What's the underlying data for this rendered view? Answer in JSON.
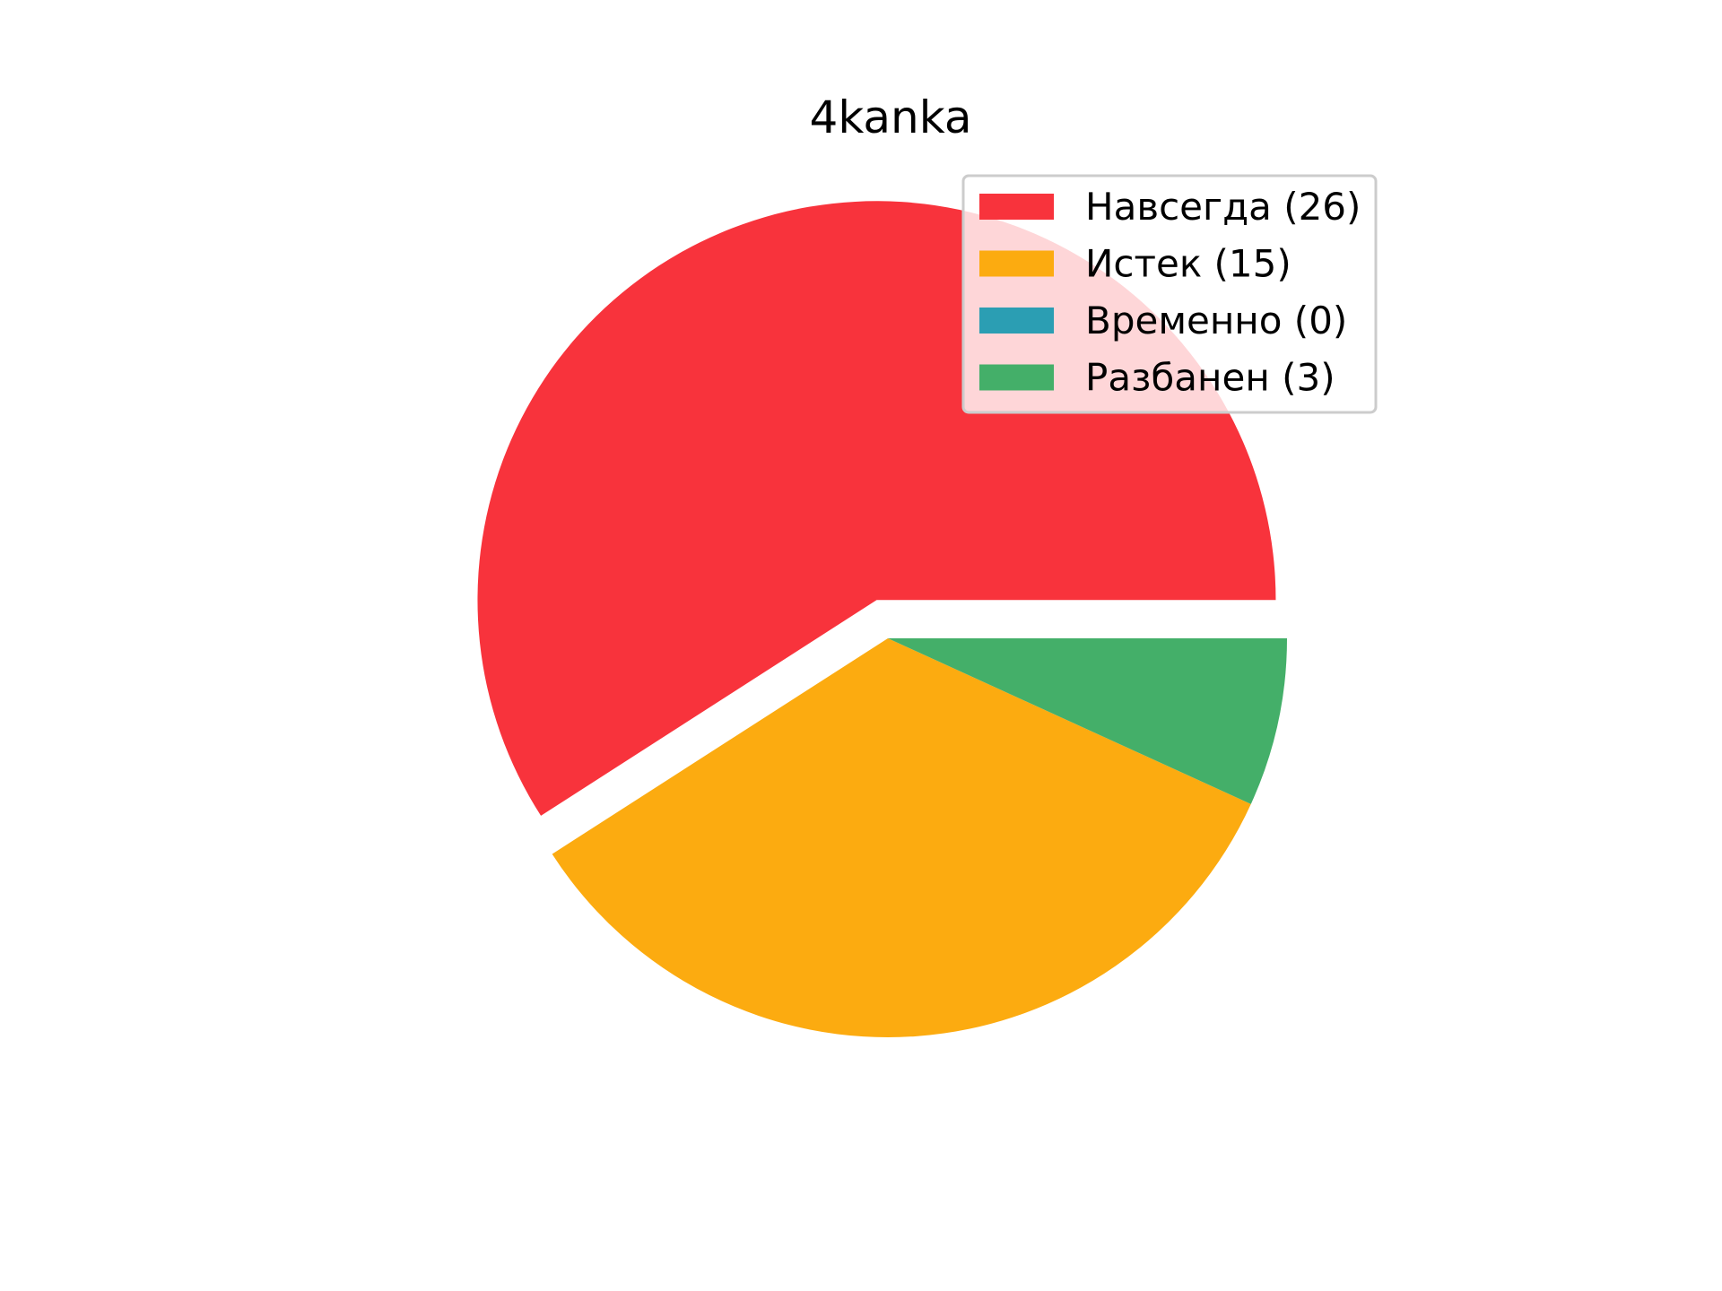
{
  "chart_data": {
    "type": "pie",
    "title": "4kanka",
    "slices": [
      {
        "name": "Навсегда",
        "value": 26,
        "legend_label": "Навсегда (26)",
        "color": "#f8333c",
        "exploded": true
      },
      {
        "name": "Истек",
        "value": 15,
        "legend_label": "Истек (15)",
        "color": "#fcab10",
        "exploded": false
      },
      {
        "name": "Временно",
        "value": 0,
        "legend_label": "Временно (0)",
        "color": "#2b9eb3",
        "exploded": false
      },
      {
        "name": "Разбанен",
        "value": 3,
        "legend_label": "Разбанен (3)",
        "color": "#44af69",
        "exploded": false
      }
    ],
    "start_angle_deg": 0,
    "direction": "counterclockwise",
    "legend_position": "upper right"
  }
}
